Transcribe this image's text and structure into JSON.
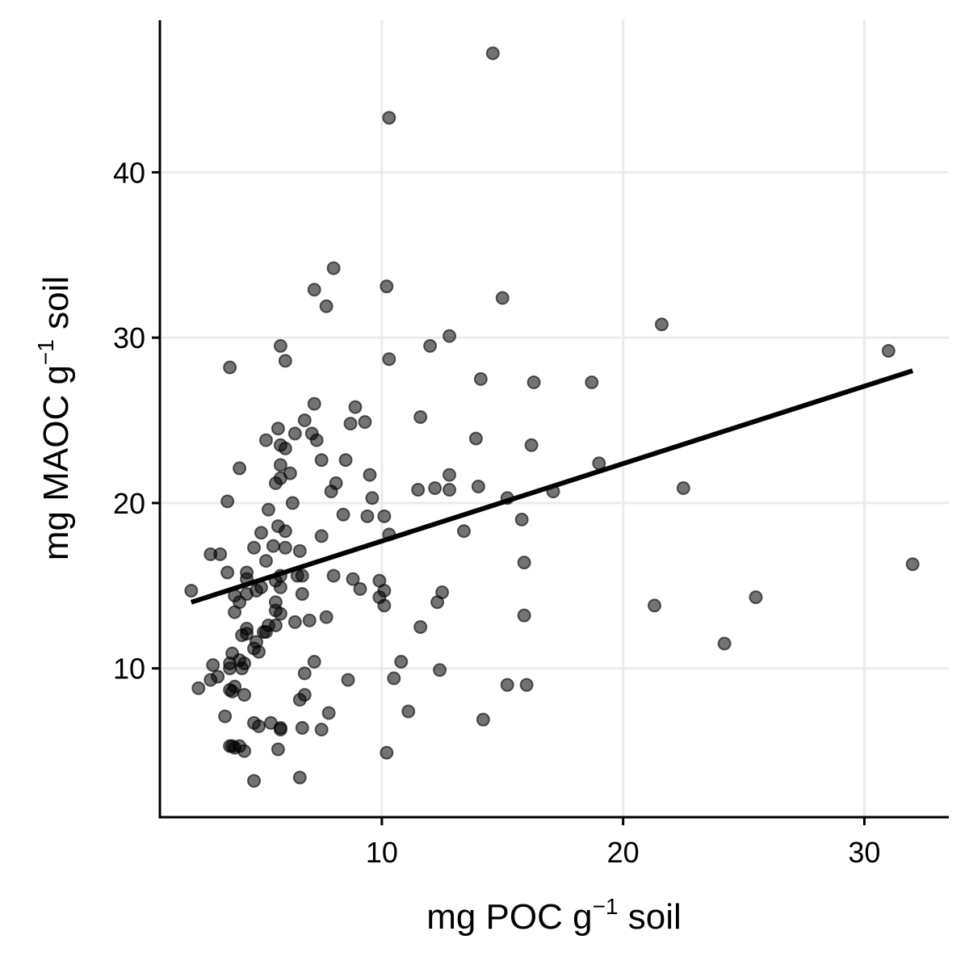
{
  "chart_data": {
    "type": "scatter",
    "xlabel": {
      "base": "mg POC g",
      "sup": "−1",
      "suffix": " soil"
    },
    "ylabel": {
      "base": "mg MAOC g",
      "sup": "−1",
      "suffix": " soil"
    },
    "xlim": [
      0.8,
      33.5
    ],
    "ylim": [
      1.0,
      49.2
    ],
    "x_ticks": [
      10,
      20,
      30
    ],
    "y_ticks": [
      10,
      20,
      30,
      40
    ],
    "grid": true,
    "colors": {
      "point_fill": "#000000",
      "point_alpha": 0.55,
      "trend_line": "#000000",
      "grid": "#ebebeb"
    },
    "trend_line": {
      "x": [
        2.1,
        32.0
      ],
      "y": [
        14.0,
        28.0
      ]
    },
    "points": {
      "x": [
        14.6,
        10.3,
        8.0,
        7.2,
        10.2,
        7.7,
        15.0,
        21.6,
        12.0,
        12.8,
        31.0,
        5.8,
        6.0,
        10.3,
        3.7,
        16.3,
        14.1,
        18.7,
        7.2,
        8.9,
        6.8,
        9.3,
        8.7,
        11.6,
        7.1,
        5.7,
        13.9,
        7.3,
        5.2,
        6.4,
        16.2,
        5.8,
        6.0,
        7.5,
        8.5,
        4.1,
        19.0,
        5.8,
        6.2,
        12.8,
        9.5,
        5.8,
        8.1,
        5.6,
        12.2,
        15.2,
        12.8,
        11.5,
        14.0,
        7.9,
        15.8,
        3.6,
        6.3,
        9.6,
        8.4,
        9.4,
        22.5,
        17.1,
        10.1,
        13.4,
        5.3,
        5.0,
        10.3,
        5.7,
        7.5,
        6.0,
        2.9,
        3.3,
        5.5,
        4.7,
        6.6,
        15.9,
        5.2,
        6.0,
        32.0,
        4.4,
        8.0,
        3.6,
        6.5,
        5.8,
        9.1,
        8.8,
        10.1,
        9.9,
        4.4,
        5.6,
        5.0,
        5.8,
        6.7,
        2.1,
        4.8,
        12.5,
        6.7,
        9.9,
        10.1,
        3.9,
        5.6,
        12.3,
        25.5,
        4.1,
        4.4,
        21.3,
        5.6,
        5.8,
        7.7,
        3.9,
        5.3,
        15.9,
        7.0,
        6.4,
        4.4,
        11.6,
        5.6,
        5.1,
        4.4,
        4.2,
        4.8,
        5.2,
        4.7,
        24.2,
        4.9,
        3.8,
        4.1,
        10.8,
        4.3,
        3.7,
        7.2,
        4.2,
        3.0,
        3.7,
        12.4,
        15.2,
        3.2,
        6.8,
        2.9,
        4.3,
        8.6,
        10.5,
        16.0,
        3.9,
        3.8,
        6.6,
        6.8,
        3.7,
        11.1,
        7.8,
        3.5,
        2.4,
        14.2,
        5.4,
        4.7,
        5.8,
        5.8,
        7.5,
        3.8,
        6.7,
        5.7,
        3.7,
        3.9,
        4.1,
        4.3,
        10.2,
        4.7,
        6.6,
        4.9
      ],
      "y": [
        47.2,
        43.3,
        34.2,
        32.9,
        33.1,
        31.9,
        32.4,
        30.8,
        29.5,
        30.1,
        29.2,
        29.5,
        28.6,
        28.7,
        28.2,
        27.3,
        27.5,
        27.3,
        26.0,
        25.8,
        25.0,
        24.9,
        24.8,
        25.2,
        24.2,
        24.5,
        23.9,
        23.8,
        23.8,
        24.2,
        23.5,
        23.5,
        23.3,
        22.6,
        22.6,
        22.1,
        22.4,
        22.3,
        21.8,
        21.7,
        21.7,
        21.5,
        21.2,
        21.2,
        20.9,
        20.3,
        20.8,
        20.8,
        21.0,
        20.7,
        19.0,
        20.1,
        20.0,
        20.3,
        19.3,
        19.2,
        20.9,
        20.7,
        19.2,
        18.3,
        19.6,
        18.2,
        18.1,
        18.6,
        18.0,
        18.3,
        16.9,
        16.9,
        17.4,
        17.3,
        17.1,
        16.4,
        16.5,
        17.3,
        16.3,
        15.8,
        15.6,
        15.8,
        15.6,
        15.6,
        14.8,
        15.4,
        14.7,
        15.3,
        15.4,
        15.3,
        14.9,
        14.9,
        15.6,
        14.7,
        14.7,
        14.6,
        14.5,
        14.3,
        13.8,
        14.4,
        14.0,
        14.0,
        14.3,
        14.0,
        14.5,
        13.8,
        13.5,
        13.3,
        13.1,
        13.4,
        12.6,
        13.2,
        12.9,
        12.8,
        12.4,
        12.5,
        12.6,
        12.2,
        12.1,
        12.0,
        11.6,
        12.2,
        11.2,
        11.5,
        11.0,
        10.9,
        10.5,
        10.4,
        10.3,
        10.3,
        10.4,
        10.0,
        10.2,
        10.0,
        9.9,
        9.0,
        9.5,
        9.7,
        9.3,
        8.4,
        9.3,
        9.4,
        9.0,
        8.9,
        8.6,
        8.1,
        8.4,
        8.7,
        7.4,
        7.3,
        7.1,
        8.8,
        6.9,
        6.7,
        6.7,
        6.3,
        6.4,
        6.3,
        5.3,
        6.4,
        5.1,
        5.3,
        5.2,
        5.3,
        5.0,
        4.9,
        3.2,
        3.4,
        6.5
      ]
    }
  }
}
